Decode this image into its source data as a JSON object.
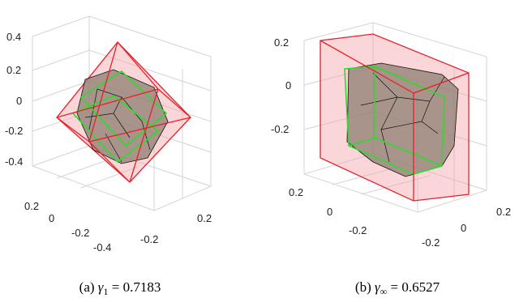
{
  "panels": [
    {
      "z_ticks": [
        "0.4",
        "0.2",
        "0",
        "-0.2",
        "-0.4"
      ],
      "x_ticks": [
        "0.2",
        "0",
        "-0.2",
        "-0.4"
      ],
      "y_ticks": [
        "-0.2",
        "0.2"
      ],
      "caption": {
        "label": "(a)",
        "symbol": "γ",
        "subscript": "1",
        "equals": "= 0.7183"
      }
    },
    {
      "z_ticks": [
        "0.2",
        "0",
        "-0.2"
      ],
      "x_ticks": [
        "0.2",
        "0",
        "-0.2"
      ],
      "y_ticks": [
        "-0.2",
        "0",
        "0.2"
      ],
      "caption": {
        "label": "(b)",
        "symbol": "γ",
        "subscript": "∞",
        "equals": "= 0.6527"
      }
    }
  ]
}
